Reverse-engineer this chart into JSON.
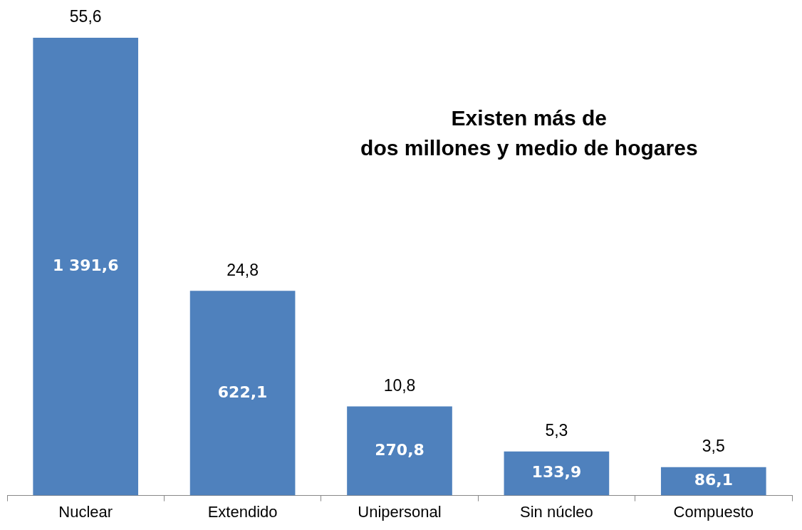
{
  "chart_data": {
    "type": "bar",
    "categories": [
      "Nuclear",
      "Extendido",
      "Unipersonal",
      "Sin núcleo",
      "Compuesto"
    ],
    "values": [
      1391.6,
      622.1,
      270.8,
      133.9,
      86.1
    ],
    "value_labels": [
      "1 391,6",
      "622,1",
      "270,8",
      "133,9",
      "86,1"
    ],
    "color": "#4f81bd",
    "grid": false,
    "legend": false,
    "annotations": [
      {
        "text": "55,6",
        "x": "Nuclear",
        "y": 1391.6
      },
      {
        "text": "24,8",
        "x": "Extendido",
        "y": 622.1
      },
      {
        "text": "10,8",
        "x": "Unipersonal",
        "y": 270.8
      },
      {
        "text": "5,3",
        "x": "Sin núcleo",
        "y": 133.9
      },
      {
        "text": "3,5",
        "x": "Compuesto",
        "y": 86.1
      },
      "Existen más de\ndos millones y medio de hogares"
    ]
  }
}
